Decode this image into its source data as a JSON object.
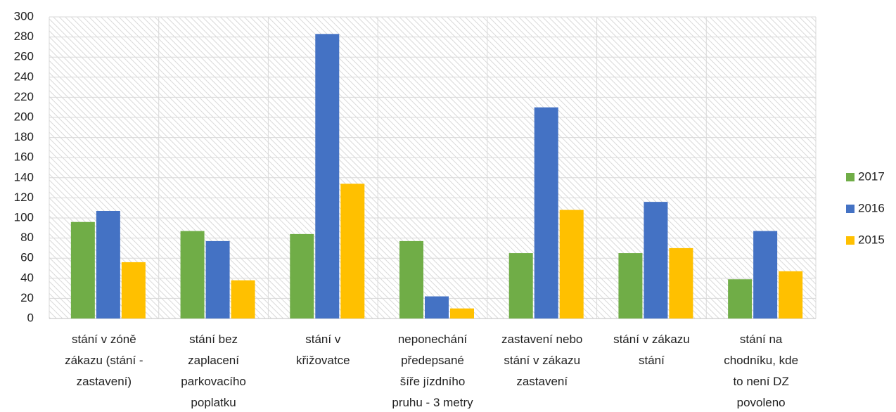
{
  "chart_data": {
    "type": "bar",
    "categories": [
      "stání v zóně\nzákazu (stání -\nzastavení)",
      "stání bez\nzaplacení\nparkovacího\npoplatku",
      "stání v\nkřižovatce",
      "neponechání\npředepsané\nšíře jízdního\npruhu - 3 metry",
      "zastavení nebo\nstání v zákazu\nzastavení",
      "stání v zákazu\nstání",
      "stání na\nchodníku, kde\nto není DZ\npovoleno"
    ],
    "series": [
      {
        "name": "2017",
        "color": "#70ad47",
        "values": [
          96,
          87,
          84,
          77,
          65,
          65,
          39
        ]
      },
      {
        "name": "2016",
        "color": "#4472c4",
        "values": [
          107,
          77,
          283,
          22,
          210,
          116,
          87
        ]
      },
      {
        "name": "2015",
        "color": "#ffc000",
        "values": [
          56,
          38,
          134,
          10,
          108,
          70,
          47
        ]
      }
    ],
    "ylim": [
      0,
      300
    ],
    "yticks": [
      0,
      20,
      40,
      60,
      80,
      100,
      120,
      140,
      160,
      180,
      200,
      220,
      240,
      260,
      280,
      300
    ],
    "grid": true,
    "legend": "right"
  }
}
